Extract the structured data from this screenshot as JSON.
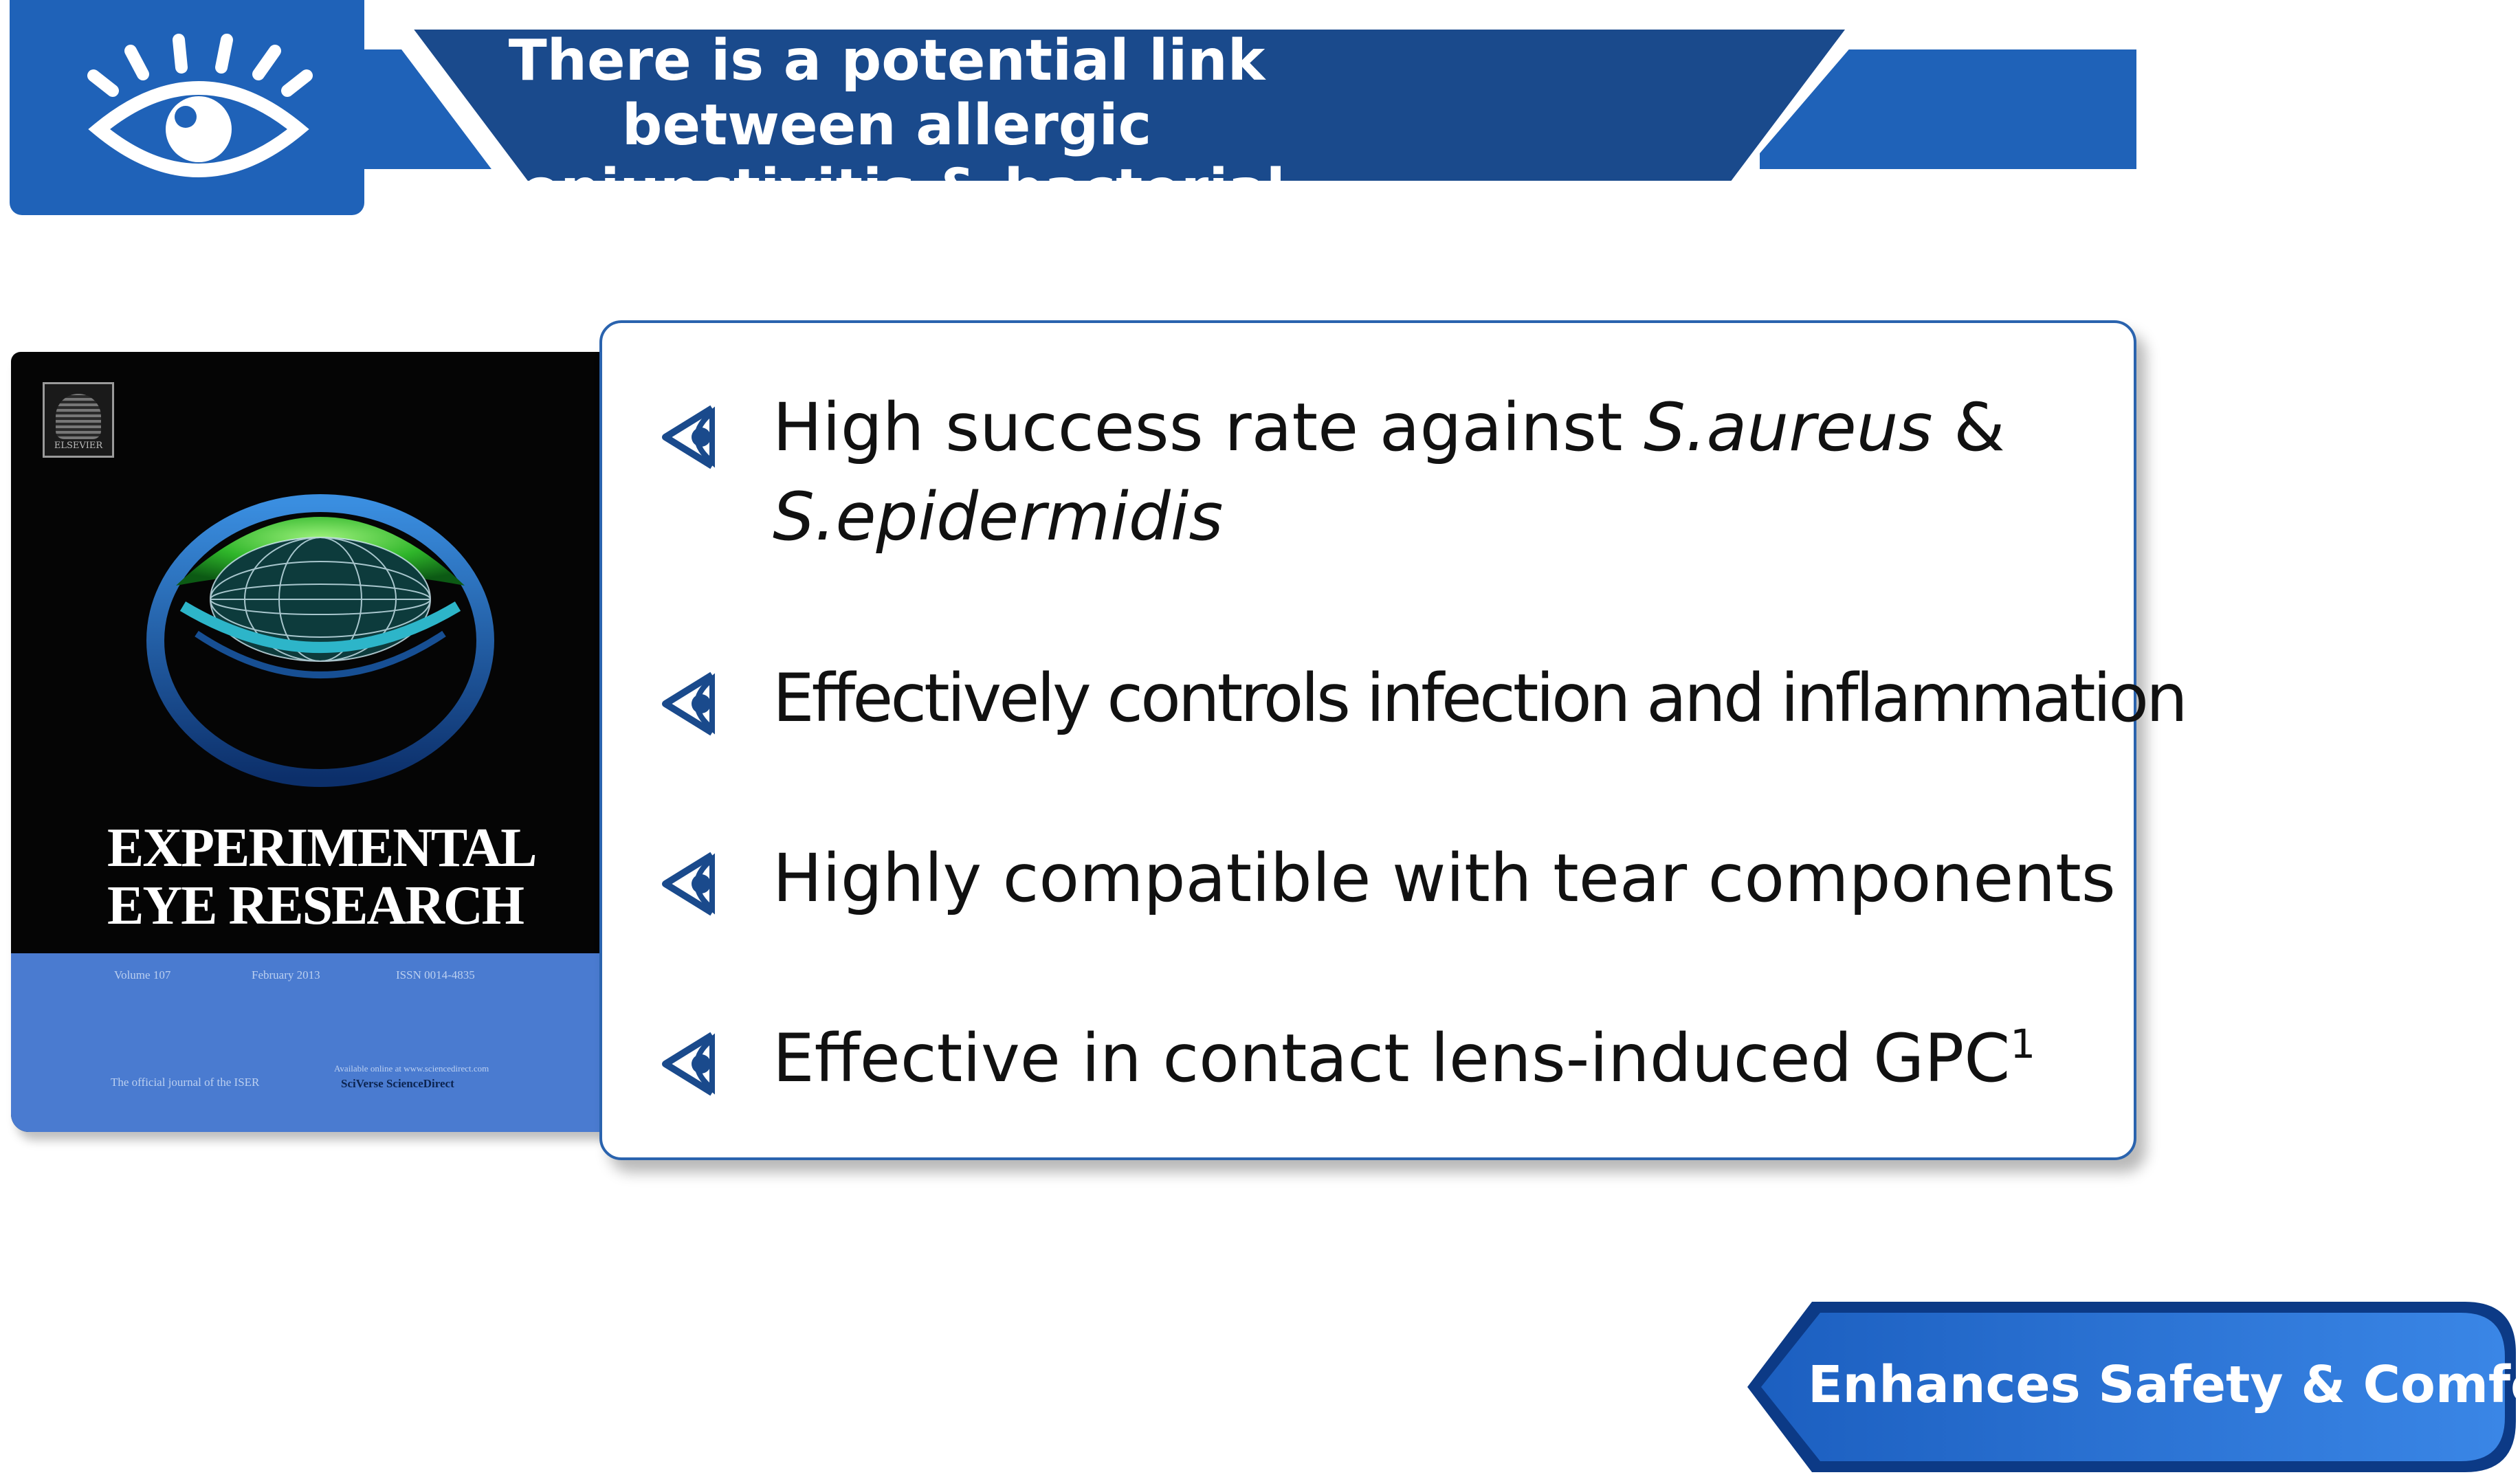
{
  "colors": {
    "brand_blue": "#1f62b8",
    "banner_navy": "#1a4a8c",
    "card_border": "#2a63ae",
    "cover_blue": "#4a7bd0"
  },
  "header": {
    "icon": "eye-icon",
    "title_line1": "There is a potential link between allergic",
    "title_line2": "conjunctivitis & bacterial pathogens*"
  },
  "cover": {
    "publisher": "ELSEVIER",
    "title_line1": "EXPERIMENTAL",
    "title_line2": "EYE RESEARCH",
    "volume": "Volume 107",
    "date": "February 2013",
    "issn": "ISSN 0014-4835",
    "society_note": "The official journal of the ISER",
    "availability": "Available online at www.sciencedirect.com",
    "platform": "SciVerse ScienceDirect"
  },
  "card": {
    "bullet_icon": "eye-arrow-icon",
    "bullets": [
      {
        "text_a": "High success rate against ",
        "italic_a": "S.aureus",
        "text_b": " &",
        "italic_b": "S.epidermidis"
      },
      {
        "text": "Effectively controls infection and inflammation"
      },
      {
        "text": "Highly compatible with tear components"
      },
      {
        "text": "Effective in contact lens-induced GPC",
        "superscript": "1"
      }
    ]
  },
  "footer": {
    "tag_label": "Enhances Safety & Comfort"
  }
}
